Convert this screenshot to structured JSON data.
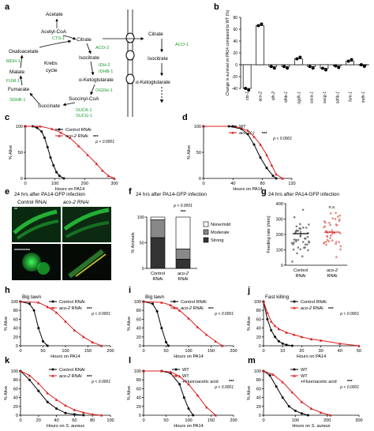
{
  "figure": {
    "panel_letters": [
      "a",
      "b",
      "c",
      "d",
      "e",
      "f",
      "g",
      "h",
      "i",
      "j",
      "k",
      "l",
      "m"
    ]
  },
  "panel_a": {
    "metabolites": {
      "acetate": "Acetate",
      "acetyl_coa": "Acetyl-CoA",
      "citrate": "Citrate",
      "isocitrate": "Isocitrate",
      "akg": "α-Ketoglutarate",
      "succinyl_coa": "Succinyl-CoA",
      "succinate": "Succinate",
      "fumarate": "Fumarate",
      "malate": "Malate",
      "oxaloacetate": "Oxaloacetate",
      "cycle": "Krebs\ncycle"
    },
    "enzymes": {
      "cts1": "CTS-1",
      "aco2": "ACO-2",
      "idh2": "IDH-2",
      "idhb1": "IDHB-1",
      "ogdh1": "OGDH-1",
      "suca1": "SUCA-1",
      "sucg1": "SUCG-1",
      "sdhb1": "SDHB-1",
      "fum1": "FUM-1",
      "mdh1": "MDH-1",
      "aco1": "ACO-1"
    },
    "cytosol": {
      "citrate": "Citrate",
      "isocitrate": "Isocitrate",
      "akg": "α-Ketoglutarate"
    },
    "colors": {
      "enzyme": "#1a9a2a"
    }
  },
  "panel_b": {
    "ylabel": "Change in survival on PA14 compared to WT (%)",
    "chart_data": {
      "type": "bar",
      "categories": [
        "cts-1",
        "aco-2",
        "idh-2",
        "idhb-1",
        "ogdh-1",
        "suca-1",
        "sucg-1",
        "sdhb-1",
        "fum-1",
        "mdh-1"
      ],
      "values": [
        -40,
        66,
        -3,
        -3,
        10,
        -3,
        -6,
        -2,
        6,
        0
      ],
      "ylim": [
        -40,
        80
      ],
      "yticks": [
        "-40",
        "-20",
        "0",
        "20",
        "40",
        "60",
        "80"
      ]
    }
  },
  "panel_c": {
    "legend": [
      "Control RNAi",
      "aco-2 RNAi"
    ],
    "stat": "***",
    "p": "p < 0.0001",
    "ylabel": "% Alive",
    "xlabel": "Hours on PA14",
    "xticks": [
      "0",
      "100",
      "200",
      "300"
    ],
    "yticks": [
      "0",
      "50",
      "100"
    ],
    "chart_data": {
      "type": "line",
      "xlim": [
        0,
        300
      ],
      "ylim": [
        0,
        100
      ],
      "series": [
        {
          "name": "Control RNAi",
          "color": "#000000",
          "x": [
            0,
            25,
            40,
            55,
            65,
            75,
            85,
            95,
            105,
            115,
            130
          ],
          "y": [
            100,
            100,
            97,
            90,
            78,
            60,
            40,
            25,
            12,
            5,
            0
          ]
        },
        {
          "name": "aco-2 RNAi",
          "color": "#d81e1e",
          "x": [
            0,
            50,
            90,
            120,
            150,
            180,
            210,
            240,
            260,
            280,
            300
          ],
          "y": [
            100,
            100,
            95,
            88,
            78,
            62,
            45,
            28,
            15,
            5,
            0
          ]
        }
      ]
    }
  },
  "panel_d": {
    "legend": [
      "WT",
      "aco-1(-)"
    ],
    "stat": "***",
    "p": "p < 0.0001",
    "ylabel": "% Alive",
    "xlabel": "Hours on PA14",
    "xticks": [
      "0",
      "40",
      "80",
      "120"
    ],
    "yticks": [
      "0",
      "50",
      "100"
    ],
    "chart_data": {
      "type": "line",
      "xlim": [
        0,
        140
      ],
      "ylim": [
        0,
        100
      ],
      "series": [
        {
          "name": "WT",
          "color": "#000000",
          "x": [
            0,
            40,
            60,
            70,
            80,
            90,
            100,
            110,
            115
          ],
          "y": [
            100,
            100,
            95,
            85,
            65,
            40,
            20,
            5,
            0
          ]
        },
        {
          "name": "aco-1(-)",
          "color": "#d81e1e",
          "x": [
            0,
            50,
            70,
            80,
            90,
            100,
            108,
            115,
            125
          ],
          "y": [
            100,
            100,
            92,
            80,
            65,
            45,
            25,
            8,
            0
          ]
        }
      ]
    }
  },
  "panel_e": {
    "title": "24 hrs after PA14-GFP infection",
    "labels": [
      "Control RNAi",
      "aco-2 RNAi"
    ]
  },
  "panel_f": {
    "title": "24 hrs after PA14-GFP infection",
    "p": "p < 0.0001",
    "stat": "***",
    "ylabel": "% Animals",
    "yticks": [
      "0",
      "50",
      "100"
    ],
    "legend": [
      "None/mild",
      "Moderate",
      "Strong"
    ],
    "chart_data": {
      "type": "bar",
      "categories": [
        "Control RNAi",
        "aco-2 RNAi"
      ],
      "series": [
        {
          "name": "Strong",
          "values": [
            60,
            18
          ]
        },
        {
          "name": "Moderate",
          "values": [
            35,
            20
          ]
        },
        {
          "name": "None/mild",
          "values": [
            5,
            62
          ]
        }
      ],
      "ylim": [
        0,
        100
      ]
    }
  },
  "panel_g": {
    "title": "24 hrs after PA14-GFP infection",
    "ylabel": "Feeding rate (/min)",
    "yticks": [
      "0",
      "100",
      "200",
      "300",
      "400"
    ],
    "stat": "n.s.",
    "chart_data": {
      "type": "scatter",
      "categories": [
        "Control RNAi",
        "aco-2 RNAi"
      ],
      "means": [
        205,
        215
      ],
      "ylim": [
        0,
        400
      ]
    }
  },
  "panel_h": {
    "tag": "Big lawn",
    "legend": [
      "Control RNAi",
      "aco-2 RNAi"
    ],
    "stat": "***",
    "p": "p < 0.0001",
    "ylabel": "% Alive",
    "xlabel": "Hours on PA14",
    "xticks": [
      "0",
      "50",
      "100",
      "150",
      "200"
    ],
    "yticks": [
      "0",
      "20",
      "40",
      "60",
      "80",
      "100"
    ],
    "chart_data": {
      "type": "line",
      "xlim": [
        0,
        200
      ],
      "ylim": [
        0,
        100
      ],
      "series": [
        {
          "name": "Control RNAi",
          "color": "#000000",
          "x": [
            0,
            20,
            30,
            40,
            50,
            60
          ],
          "y": [
            100,
            95,
            80,
            40,
            10,
            0
          ]
        },
        {
          "name": "aco-2 RNAi",
          "color": "#d81e1e",
          "x": [
            0,
            40,
            60,
            80,
            100,
            120,
            140,
            160,
            180
          ],
          "y": [
            100,
            98,
            88,
            75,
            55,
            35,
            20,
            8,
            0
          ]
        }
      ]
    }
  },
  "panel_i": {
    "tag": "Big lawn",
    "legend": [
      "Control RNAi",
      "aco-2 RNAi"
    ],
    "stat": "***",
    "p": "p < 0.0001",
    "ylabel": "% Alive",
    "xlabel": "Hours on PA14",
    "xticks": [
      "0",
      "50",
      "100",
      "150",
      "200"
    ],
    "yticks": [
      "0",
      "20",
      "40",
      "60",
      "80",
      "100"
    ],
    "chart_data": {
      "type": "line",
      "xlim": [
        0,
        200
      ],
      "ylim": [
        0,
        100
      ],
      "series": [
        {
          "name": "Control RNAi",
          "color": "#000000",
          "x": [
            0,
            20,
            30,
            40,
            50,
            55
          ],
          "y": [
            100,
            95,
            78,
            40,
            8,
            0
          ]
        },
        {
          "name": "aco-2 RNAi",
          "color": "#d81e1e",
          "x": [
            0,
            40,
            60,
            80,
            100,
            120,
            140,
            160,
            175
          ],
          "y": [
            100,
            98,
            92,
            80,
            62,
            42,
            25,
            10,
            0
          ]
        }
      ]
    }
  },
  "panel_j": {
    "tag": "Fast killing",
    "legend": [
      "Control RNAi",
      "aco-2 RNAi"
    ],
    "stat": "***",
    "p": "p < 0.0001",
    "ylabel": "% Alive",
    "xlabel": "Hours on PA14",
    "xticks": [
      "0",
      "10",
      "20",
      "30",
      "40",
      "50"
    ],
    "yticks": [
      "0",
      "20",
      "40",
      "60",
      "80",
      "100"
    ],
    "chart_data": {
      "type": "line",
      "xlim": [
        0,
        50
      ],
      "ylim": [
        0,
        100
      ],
      "series": [
        {
          "name": "Control RNAi",
          "color": "#000000",
          "x": [
            0,
            2,
            4,
            6,
            8,
            10,
            12,
            15
          ],
          "y": [
            100,
            60,
            35,
            20,
            10,
            5,
            2,
            0
          ]
        },
        {
          "name": "aco-2 RNAi",
          "color": "#d81e1e",
          "x": [
            0,
            2,
            4,
            6,
            8,
            12,
            16,
            20,
            25,
            30,
            40,
            50
          ],
          "y": [
            100,
            75,
            55,
            45,
            38,
            30,
            25,
            20,
            15,
            12,
            5,
            0
          ]
        }
      ]
    }
  },
  "panel_k": {
    "legend": [
      "Control RNAi",
      "aco-2 RNAi"
    ],
    "stat": "***",
    "p": "p < 0.0001",
    "ylabel": "% Alive",
    "xlabel": "Hours on S. aureus",
    "xlabel_plain": "Hours on ",
    "xlabel_italic": "S. aureus",
    "xticks": [
      "0",
      "20",
      "40",
      "60",
      "80",
      "100"
    ],
    "yticks": [
      "0",
      "20",
      "40",
      "60",
      "80",
      "100"
    ],
    "chart_data": {
      "type": "line",
      "xlim": [
        0,
        100
      ],
      "ylim": [
        0,
        100
      ],
      "series": [
        {
          "name": "Control RNAi",
          "color": "#000000",
          "x": [
            0,
            10,
            20,
            30,
            40,
            50,
            60,
            70
          ],
          "y": [
            100,
            80,
            55,
            30,
            15,
            5,
            2,
            0
          ]
        },
        {
          "name": "aco-2 RNAi",
          "color": "#d81e1e",
          "x": [
            0,
            10,
            20,
            30,
            40,
            50,
            60,
            70,
            80,
            90
          ],
          "y": [
            100,
            90,
            72,
            50,
            35,
            22,
            12,
            6,
            2,
            0
          ]
        }
      ]
    }
  },
  "panel_l": {
    "legend": [
      "WT",
      "WT",
      "+Fluoroacetic acid"
    ],
    "stat": "***",
    "p": "p < 0.0001",
    "ylabel": "% Alive",
    "xlabel": "Hours on PA14",
    "xticks": [
      "0",
      "50",
      "100",
      "150",
      "200"
    ],
    "yticks": [
      "0",
      "20",
      "40",
      "60",
      "80",
      "100"
    ],
    "chart_data": {
      "type": "line",
      "xlim": [
        0,
        200
      ],
      "ylim": [
        0,
        100
      ],
      "series": [
        {
          "name": "WT",
          "color": "#000000",
          "x": [
            0,
            40,
            60,
            80,
            90,
            100,
            110
          ],
          "y": [
            100,
            100,
            95,
            70,
            40,
            15,
            0
          ]
        },
        {
          "name": "WT +Fluoroacetic acid",
          "color": "#d81e1e",
          "x": [
            0,
            40,
            60,
            80,
            100,
            120,
            140,
            160
          ],
          "y": [
            100,
            100,
            98,
            88,
            70,
            45,
            18,
            0
          ]
        }
      ]
    }
  },
  "panel_m": {
    "legend": [
      "WT",
      "WT",
      "+Fluoroacetic acid"
    ],
    "stat": "***",
    "p": "p < 0.0001",
    "ylabel": "% Alive",
    "xlabel": "Hours on S. aureus",
    "xlabel_plain": "Hours on ",
    "xlabel_italic": "S. aureus",
    "xticks": [
      "0",
      "100",
      "200",
      "300"
    ],
    "yticks": [
      "0",
      "20",
      "40",
      "60",
      "80",
      "100"
    ],
    "chart_data": {
      "type": "line",
      "xlim": [
        0,
        300
      ],
      "ylim": [
        0,
        100
      ],
      "series": [
        {
          "name": "WT",
          "color": "#000000",
          "x": [
            0,
            20,
            40,
            60,
            80,
            100,
            120,
            140
          ],
          "y": [
            100,
            90,
            65,
            40,
            20,
            10,
            4,
            0
          ]
        },
        {
          "name": "WT +Fluoroacetic acid",
          "color": "#d81e1e",
          "x": [
            0,
            30,
            60,
            90,
            120,
            150,
            180,
            210
          ],
          "y": [
            100,
            92,
            75,
            52,
            30,
            15,
            6,
            0
          ]
        }
      ]
    }
  }
}
